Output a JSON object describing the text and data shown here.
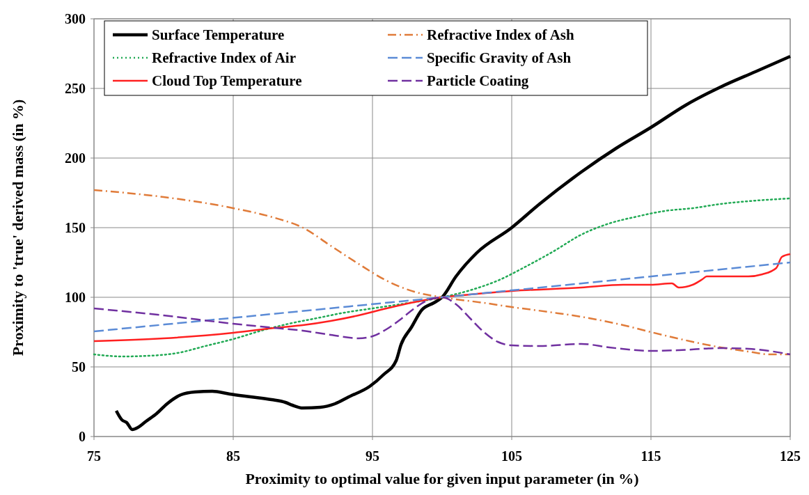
{
  "chart_data": {
    "type": "line",
    "xlabel": "Proximity to optimal value for given input parameter (in %)",
    "ylabel": "Proximity to 'true' derived mass (in %)",
    "xlim": [
      75,
      125
    ],
    "xticks": [
      75,
      85,
      95,
      105,
      115,
      125
    ],
    "ylim": [
      0,
      300
    ],
    "yticks": [
      0,
      50,
      100,
      150,
      200,
      250,
      300
    ],
    "grid": true,
    "legend": "top",
    "series": [
      {
        "name": "Surface Temperature",
        "color": "#000000",
        "line_style": "solid",
        "x": [
          76.6,
          77,
          77.35,
          77.75,
          78.15,
          78.75,
          79.5,
          80.25,
          81.25,
          82.25,
          83.5,
          84.75,
          86.25,
          87.75,
          88.75,
          89.25,
          90,
          91.25,
          92.3,
          93.3,
          94.8,
          95.8,
          96.7,
          97.05,
          97.8,
          98.55,
          99.4,
          100,
          101,
          102.5,
          105,
          107,
          110,
          112.5,
          115,
          117.5,
          120,
          122.5,
          125
        ],
        "values": [
          18.5,
          12,
          10,
          5,
          6.5,
          11,
          16.5,
          23.5,
          30,
          32,
          32.5,
          30.5,
          28.5,
          26.5,
          24.5,
          22.5,
          20.5,
          21,
          23.5,
          28.5,
          36,
          44.5,
          54.5,
          66,
          78.5,
          91,
          96,
          100,
          115,
          132,
          150,
          167,
          190,
          207,
          222,
          238,
          251,
          262,
          273
        ]
      },
      {
        "name": "Refractive Index of Air",
        "color": "#22aa55",
        "line_style": "dotted",
        "x": [
          75,
          77,
          79,
          81,
          83,
          85,
          87,
          89,
          91,
          93,
          95,
          97,
          100,
          102,
          104,
          106,
          108,
          110,
          112,
          114,
          116,
          118,
          120,
          122,
          125
        ],
        "values": [
          59,
          57.5,
          58,
          60,
          65,
          70,
          76,
          81,
          85,
          89,
          92,
          95,
          100,
          105,
          112,
          122,
          133,
          145,
          153,
          158,
          162,
          164,
          167,
          169,
          171
        ]
      },
      {
        "name": "Cloud Top Temperature",
        "color": "#ff2020",
        "line_style": "solid",
        "x": [
          75,
          80,
          85,
          88,
          90,
          92,
          94,
          96,
          98,
          100,
          102,
          105,
          110,
          113,
          115,
          116.5,
          117,
          118,
          118.7,
          119,
          120,
          122,
          123,
          124,
          124.4,
          125
        ],
        "values": [
          68.5,
          70.5,
          74.5,
          78,
          80,
          83,
          87,
          92,
          96.5,
          100,
          102,
          104.5,
          107,
          109,
          109,
          110,
          107,
          109,
          113,
          115,
          115,
          115,
          116.5,
          121,
          129,
          131
        ]
      },
      {
        "name": "Refractive Index of Ash",
        "color": "#e07b39",
        "line_style": "dashdot",
        "x": [
          75,
          80,
          85,
          88,
          90,
          92,
          94,
          96,
          98,
          100,
          103,
          105,
          108,
          110,
          113,
          115,
          118,
          120,
          122,
          123.5,
          125
        ],
        "values": [
          177,
          172,
          164,
          157,
          150,
          137,
          124,
          112,
          104,
          100,
          96,
          93,
          89,
          86,
          80,
          75,
          68,
          64,
          61,
          59,
          59
        ]
      },
      {
        "name": "Specific Gravity of Ash",
        "color": "#5b8bd6",
        "line_style": "dashed",
        "x": [
          75,
          100,
          125
        ],
        "values": [
          75.5,
          100,
          125
        ]
      },
      {
        "name": "Particle Coating",
        "color": "#7030a0",
        "line_style": "dashed",
        "x": [
          75,
          80,
          85,
          88,
          90,
          92,
          94,
          95,
          96,
          97,
          98,
          99,
          100,
          101,
          102,
          103,
          104,
          105,
          107,
          110,
          112,
          115,
          117,
          120,
          122,
          125
        ],
        "values": [
          92,
          87,
          81,
          78,
          76,
          73,
          70.5,
          72,
          77,
          84,
          92,
          98,
          100,
          95,
          85,
          75,
          68,
          65.5,
          65,
          66.5,
          64,
          61.5,
          62,
          63.5,
          63,
          59
        ]
      }
    ]
  }
}
